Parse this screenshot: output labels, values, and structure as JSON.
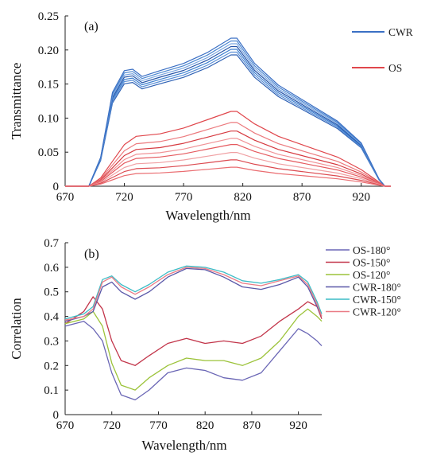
{
  "chart_data": [
    {
      "type": "line",
      "panel_label": "(a)",
      "xlabel": "Wavelength/nm",
      "ylabel": "Transmittance",
      "xlim": [
        670,
        945
      ],
      "ylim": [
        0,
        0.25
      ],
      "xticks": [
        670,
        720,
        770,
        820,
        870,
        920
      ],
      "yticks": [
        0,
        0.05,
        0.1,
        0.15,
        0.2,
        0.25
      ],
      "ytick_labels": [
        "0",
        "0.05",
        "0.10",
        "0.15",
        "0.20",
        "0.25"
      ],
      "grid": false,
      "legend_position": "top-right",
      "legend": [
        {
          "name": "CWR",
          "color": "#3a6fc4"
        },
        {
          "name": "OS",
          "color": "#e0474c"
        }
      ],
      "groups": [
        {
          "name": "CWR",
          "template": {
            "x": [
              670,
              690,
              700,
              710,
              720,
              727,
              735,
              750,
              770,
              790,
              810,
              815,
              830,
              850,
              870,
              900,
              920,
              935,
              940,
              945
            ],
            "y": [
              0,
              0,
              0.04,
              0.13,
              0.16,
              0.162,
              0.152,
              0.16,
              0.17,
              0.185,
              0.205,
              0.205,
              0.17,
              0.14,
              0.12,
              0.09,
              0.06,
              0.01,
              0,
              0
            ]
          },
          "curves": [
            {
              "scale": 0.94,
              "color": "#2f62b5"
            },
            {
              "scale": 0.96,
              "color": "#5a8fd6"
            },
            {
              "scale": 0.98,
              "color": "#3c7fd0"
            },
            {
              "scale": 1.0,
              "color": "#2554a8"
            },
            {
              "scale": 1.02,
              "color": "#7aa6e0"
            },
            {
              "scale": 1.04,
              "color": "#4b86d0"
            },
            {
              "scale": 1.06,
              "color": "#3a6fc4"
            }
          ]
        },
        {
          "name": "OS",
          "template": {
            "x": [
              670,
              690,
              700,
              710,
              720,
              730,
              750,
              770,
              790,
              810,
              815,
              830,
              850,
              870,
              900,
              920,
              935,
              940,
              945
            ],
            "y": [
              0,
              0,
              0.01,
              0.03,
              0.05,
              0.06,
              0.063,
              0.07,
              0.08,
              0.09,
              0.09,
              0.075,
              0.06,
              0.05,
              0.035,
              0.02,
              0.005,
              0,
              0
            ]
          },
          "curves": [
            {
              "scale": 1.22,
              "color": "#e0474c"
            },
            {
              "scale": 1.04,
              "color": "#ec7a7e"
            },
            {
              "scale": 0.9,
              "color": "#d63a40"
            },
            {
              "scale": 0.78,
              "color": "#f09397"
            },
            {
              "scale": 0.68,
              "color": "#e55a5f"
            },
            {
              "scale": 0.55,
              "color": "#f0a0a3"
            },
            {
              "scale": 0.43,
              "color": "#dc4a50"
            },
            {
              "scale": 0.31,
              "color": "#ea6c70"
            }
          ]
        }
      ]
    },
    {
      "type": "line",
      "panel_label": "(b)",
      "xlabel": "Wavelength/nm",
      "ylabel": "Correlation",
      "xlim": [
        670,
        945
      ],
      "ylim": [
        0,
        0.7
      ],
      "xticks": [
        670,
        720,
        770,
        820,
        870,
        920
      ],
      "yticks": [
        0,
        0.1,
        0.2,
        0.3,
        0.4,
        0.5,
        0.6,
        0.7
      ],
      "ytick_labels": [
        "0",
        "0.1",
        "0.2",
        "0.3",
        "0.4",
        "0.5",
        "0.6",
        "0.7"
      ],
      "grid": false,
      "legend_position": "top-right",
      "series": [
        {
          "name": "OS-180°",
          "color": "#6a66b5",
          "x": [
            670,
            690,
            700,
            710,
            720,
            730,
            745,
            760,
            780,
            800,
            820,
            840,
            860,
            880,
            900,
            920,
            930,
            940,
            945
          ],
          "y": [
            0.36,
            0.38,
            0.35,
            0.3,
            0.17,
            0.08,
            0.06,
            0.1,
            0.17,
            0.19,
            0.18,
            0.15,
            0.14,
            0.17,
            0.26,
            0.35,
            0.33,
            0.3,
            0.28
          ]
        },
        {
          "name": "OS-150°",
          "color": "#c2354a",
          "x": [
            670,
            690,
            700,
            710,
            720,
            730,
            745,
            760,
            780,
            800,
            820,
            840,
            860,
            880,
            900,
            920,
            930,
            940,
            945
          ],
          "y": [
            0.37,
            0.42,
            0.48,
            0.43,
            0.3,
            0.22,
            0.2,
            0.24,
            0.29,
            0.31,
            0.29,
            0.3,
            0.29,
            0.32,
            0.38,
            0.43,
            0.46,
            0.44,
            0.39
          ]
        },
        {
          "name": "OS-120°",
          "color": "#9cc33a",
          "x": [
            670,
            690,
            700,
            710,
            720,
            730,
            745,
            760,
            780,
            800,
            820,
            840,
            860,
            880,
            900,
            920,
            930,
            940,
            945
          ],
          "y": [
            0.37,
            0.39,
            0.42,
            0.36,
            0.21,
            0.12,
            0.1,
            0.15,
            0.2,
            0.23,
            0.22,
            0.22,
            0.2,
            0.23,
            0.3,
            0.4,
            0.43,
            0.4,
            0.38
          ]
        },
        {
          "name": "CWR-180°",
          "color": "#5a58a8",
          "x": [
            670,
            690,
            700,
            710,
            720,
            730,
            745,
            760,
            780,
            800,
            820,
            840,
            860,
            880,
            900,
            920,
            930,
            940,
            945
          ],
          "y": [
            0.38,
            0.4,
            0.42,
            0.52,
            0.54,
            0.5,
            0.47,
            0.5,
            0.56,
            0.595,
            0.59,
            0.56,
            0.52,
            0.51,
            0.53,
            0.56,
            0.52,
            0.44,
            0.4
          ]
        },
        {
          "name": "CWR-150°",
          "color": "#3cbcc6",
          "x": [
            670,
            690,
            700,
            710,
            720,
            730,
            745,
            760,
            780,
            800,
            820,
            840,
            860,
            880,
            900,
            920,
            930,
            940,
            945
          ],
          "y": [
            0.39,
            0.41,
            0.44,
            0.55,
            0.565,
            0.53,
            0.5,
            0.53,
            0.58,
            0.605,
            0.6,
            0.58,
            0.545,
            0.535,
            0.55,
            0.57,
            0.54,
            0.46,
            0.41
          ]
        },
        {
          "name": "CWR-120°",
          "color": "#ea7c86",
          "x": [
            670,
            690,
            700,
            710,
            720,
            730,
            745,
            760,
            780,
            800,
            820,
            840,
            860,
            880,
            900,
            920,
            930,
            940,
            945
          ],
          "y": [
            0.385,
            0.4,
            0.43,
            0.54,
            0.56,
            0.52,
            0.49,
            0.52,
            0.57,
            0.6,
            0.595,
            0.57,
            0.535,
            0.525,
            0.545,
            0.565,
            0.53,
            0.45,
            0.4
          ]
        }
      ]
    }
  ]
}
